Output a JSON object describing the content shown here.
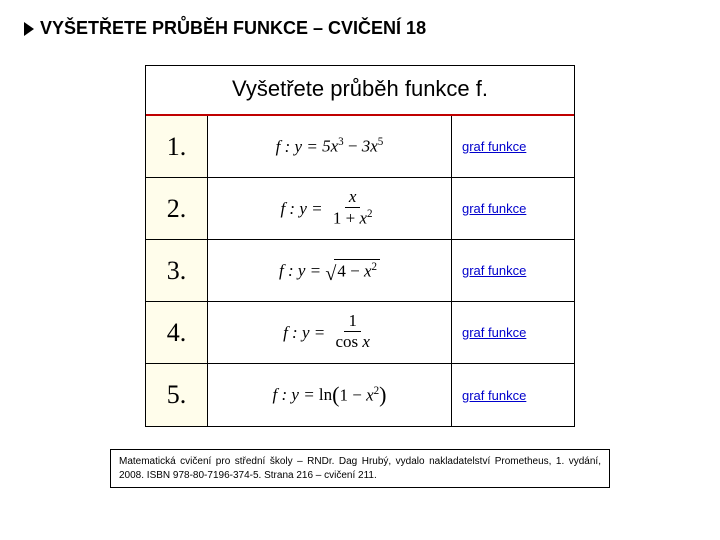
{
  "header": {
    "title": "VYŠETŘETE PRŮBĚH FUNKCE – CVIČENÍ 18"
  },
  "table": {
    "title": "Vyšetřete průběh funkce f.",
    "header_rule_color": "#c00000",
    "num_bg_color": "#fffdeb",
    "link_text": "graf funkce",
    "link_color": "#0000cc",
    "rows": [
      {
        "n": "1."
      },
      {
        "n": "2."
      },
      {
        "n": "3."
      },
      {
        "n": "4."
      },
      {
        "n": "5."
      }
    ]
  },
  "formulas": {
    "prefix": "f : y =",
    "r1": {
      "a": "5",
      "b": "3",
      "c": "3",
      "d": "5"
    },
    "r2": {
      "num": "x",
      "den_a": "1 +",
      "den_b": "x",
      "den_exp": "2"
    },
    "r3": {
      "under_a": "4 −",
      "under_b": "x",
      "under_exp": "2"
    },
    "r4": {
      "num": "1",
      "den_a": "cos",
      "den_b": "x"
    },
    "r5": {
      "fn": "ln",
      "inner_a": "1 −",
      "inner_b": "x",
      "inner_exp": "2"
    }
  },
  "citation": {
    "text": "Matematická cvičení pro střední školy – RNDr. Dag Hrubý, vydalo nakladatelství Prometheus, 1. vydání, 2008. ISBN 978-80-7196-374-5. Strana 216 – cvičení 211."
  }
}
